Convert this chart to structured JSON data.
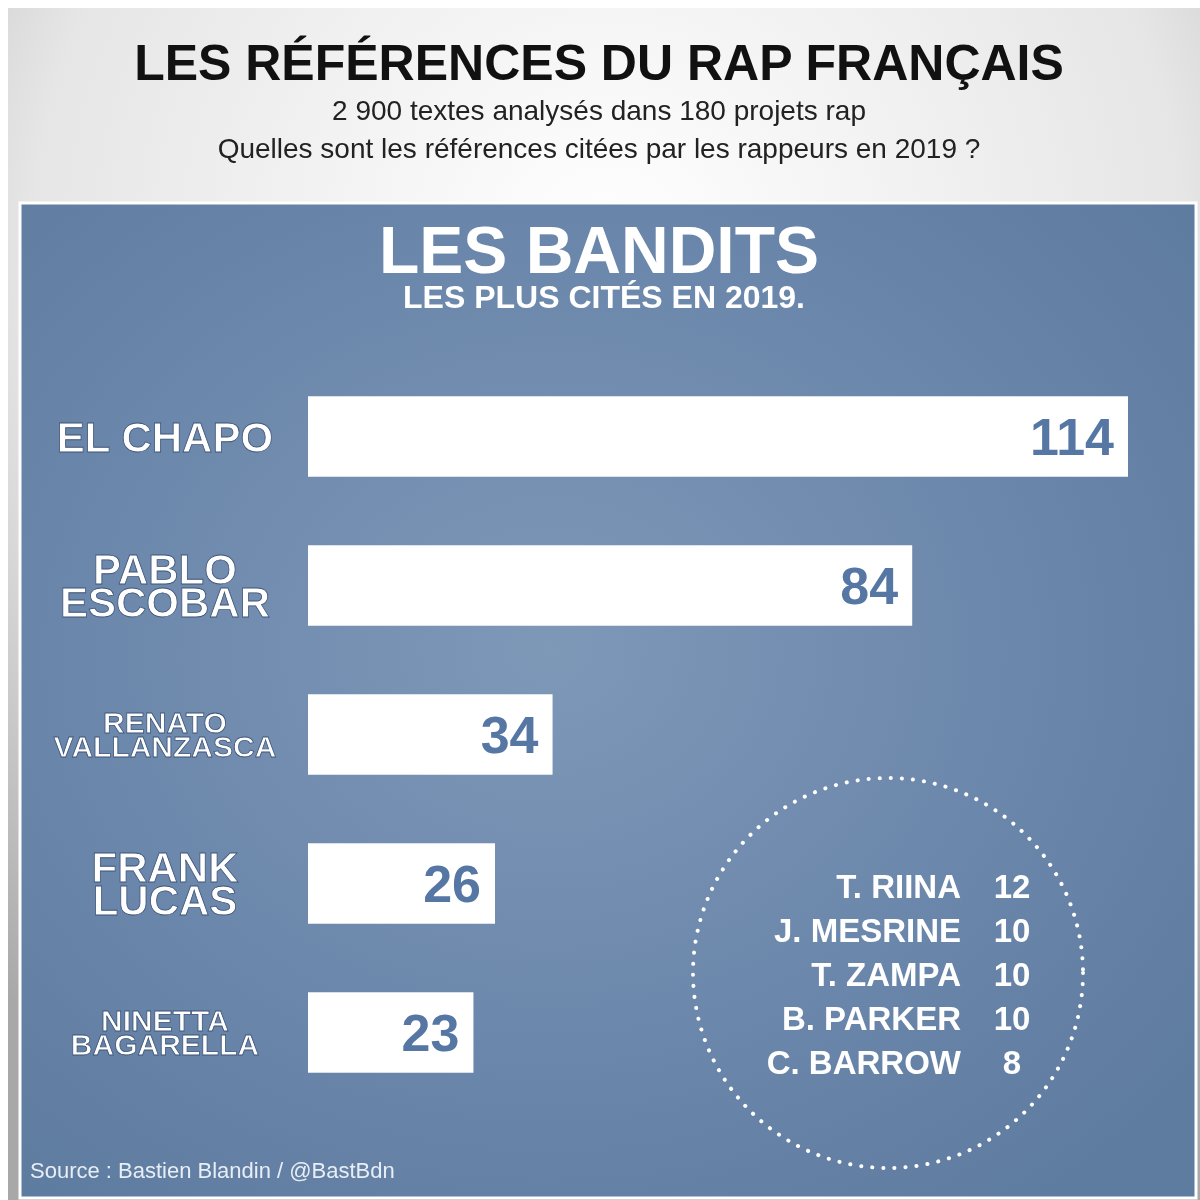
{
  "chart_data": {
    "type": "bar",
    "orientation": "horizontal",
    "title": "LES RÉFÉRENCES DU RAP FRANÇAIS",
    "subtitle": "2 900 textes analysés dans 180 projets rap\nQuelles sont les références citées par les rappeurs en 2019 ?",
    "categories": [
      "EL CHAPO",
      "PABLO ESCOBAR",
      "RENATO VALLANZASCA",
      "FRANK LUCAS",
      "NINETTA BAGARELLA"
    ],
    "values": [
      114,
      84,
      34,
      26,
      23
    ],
    "color": "#ffffff",
    "data_labels": true,
    "annotations": [
      "LES BANDITS",
      "LES PLUS CITÉS EN 2019.",
      "T. RIINA 12",
      "J. MESRINE 10",
      "T. ZAMPA 10",
      "B. PARKER 10",
      "C. BARROW 8",
      "Source : Bastien Blandin / @BastBdn"
    ]
  }
}
